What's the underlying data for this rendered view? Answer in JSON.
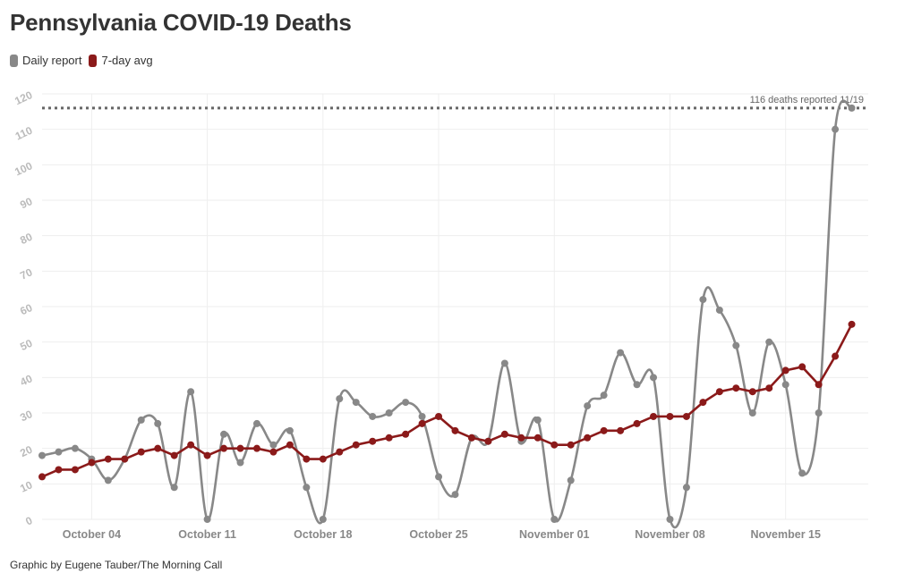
{
  "title": "Pennsylvania COVID-19 Deaths",
  "credit": "Graphic by Eugene Tauber/The Morning Call",
  "colors": {
    "daily": "#888888",
    "avg": "#8b1a1a",
    "reference": "#666666",
    "grid": "#eeeeee"
  },
  "chart_data": {
    "type": "line",
    "title": "Pennsylvania COVID-19 Deaths",
    "xlabel": "",
    "ylabel": "",
    "ylim": [
      0,
      120
    ],
    "yticks": [
      0,
      10,
      20,
      30,
      40,
      50,
      60,
      70,
      80,
      90,
      100,
      110,
      120
    ],
    "x_start": "2020-10-01",
    "x_end": "2020-11-20",
    "xticks": [
      {
        "date": "2020-10-04",
        "label": "October 04"
      },
      {
        "date": "2020-10-11",
        "label": "October 11"
      },
      {
        "date": "2020-10-18",
        "label": "October 18"
      },
      {
        "date": "2020-10-25",
        "label": "October 25"
      },
      {
        "date": "2020-11-01",
        "label": "November 01"
      },
      {
        "date": "2020-11-08",
        "label": "November 08"
      },
      {
        "date": "2020-11-15",
        "label": "November 15"
      }
    ],
    "legend_position": "top-left",
    "grid": true,
    "series": [
      {
        "name": "Daily report",
        "color": "#888888",
        "smooth": true,
        "values": [
          18,
          19,
          20,
          17,
          11,
          17,
          28,
          27,
          9,
          36,
          0,
          24,
          16,
          27,
          21,
          25,
          9,
          0,
          34,
          33,
          29,
          30,
          33,
          29,
          12,
          7,
          23,
          22,
          44,
          22,
          28,
          0,
          11,
          32,
          35,
          47,
          38,
          40,
          0,
          9,
          62,
          59,
          49,
          30,
          50,
          38,
          13,
          30,
          110,
          116
        ]
      },
      {
        "name": "7-day avg",
        "color": "#8b1a1a",
        "smooth": false,
        "values": [
          12,
          14,
          14,
          16,
          17,
          17,
          19,
          20,
          18,
          21,
          18,
          20,
          20,
          20,
          19,
          21,
          17,
          17,
          19,
          21,
          22,
          23,
          24,
          27,
          29,
          25,
          23,
          22,
          24,
          23,
          23,
          21,
          21,
          23,
          25,
          25,
          27,
          29,
          29,
          29,
          33,
          36,
          37,
          36,
          37,
          42,
          43,
          38,
          46,
          55
        ]
      }
    ],
    "reference_line": {
      "value": 116,
      "label": "116 deaths reported 11/19"
    }
  }
}
